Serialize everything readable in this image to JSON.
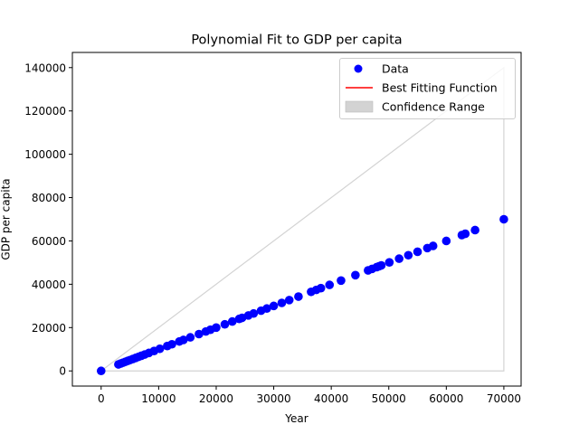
{
  "chart_data": {
    "type": "scatter",
    "title": "Polynomial Fit to GDP per capita",
    "xlabel": "Year",
    "ylabel": "GDP per capita",
    "xlim": [
      -5000,
      73000
    ],
    "ylim": [
      -7000,
      147000
    ],
    "xticks": [
      0,
      10000,
      20000,
      30000,
      40000,
      50000,
      60000,
      70000
    ],
    "xtick_labels": [
      "0",
      "10000",
      "20000",
      "30000",
      "40000",
      "50000",
      "60000",
      "70000"
    ],
    "yticks": [
      0,
      20000,
      40000,
      60000,
      80000,
      100000,
      120000,
      140000
    ],
    "ytick_labels": [
      "0",
      "20000",
      "40000",
      "60000",
      "80000",
      "100000",
      "120000",
      "140000"
    ],
    "grid": false,
    "legend_position": "top-right",
    "legend": [
      {
        "label": "Data",
        "marker": "circle",
        "color": "#0000ff"
      },
      {
        "label": "Best Fitting Function",
        "marker": "line",
        "color": "#ff0000"
      },
      {
        "label": "Confidence Range",
        "marker": "patch",
        "color": "#d3d3d3"
      }
    ],
    "series": [
      {
        "name": "Data",
        "type": "scatter",
        "color": "#0000ff",
        "points": [
          [
            0,
            0
          ],
          [
            3000,
            3000
          ],
          [
            3400,
            3400
          ],
          [
            3800,
            3800
          ],
          [
            4200,
            4200
          ],
          [
            4600,
            4600
          ],
          [
            5000,
            5000
          ],
          [
            5500,
            5500
          ],
          [
            6000,
            6000
          ],
          [
            6500,
            6500
          ],
          [
            7000,
            7000
          ],
          [
            7600,
            7600
          ],
          [
            8300,
            8300
          ],
          [
            9200,
            9200
          ],
          [
            10200,
            10200
          ],
          [
            11500,
            11500
          ],
          [
            12300,
            12300
          ],
          [
            13600,
            13600
          ],
          [
            14300,
            14300
          ],
          [
            15500,
            15500
          ],
          [
            17000,
            17000
          ],
          [
            18200,
            18200
          ],
          [
            19000,
            19000
          ],
          [
            20000,
            20000
          ],
          [
            21500,
            21500
          ],
          [
            22800,
            22800
          ],
          [
            24000,
            24000
          ],
          [
            24500,
            24500
          ],
          [
            25600,
            25600
          ],
          [
            26500,
            26500
          ],
          [
            27800,
            27800
          ],
          [
            28800,
            28800
          ],
          [
            30000,
            30000
          ],
          [
            31400,
            31400
          ],
          [
            32700,
            32700
          ],
          [
            34300,
            34300
          ],
          [
            36500,
            36500
          ],
          [
            37400,
            37400
          ],
          [
            38200,
            38200
          ],
          [
            39700,
            39700
          ],
          [
            41700,
            41700
          ],
          [
            44200,
            44200
          ],
          [
            46400,
            46400
          ],
          [
            47100,
            47100
          ],
          [
            47900,
            47900
          ],
          [
            48300,
            48300
          ],
          [
            48700,
            48700
          ],
          [
            50100,
            50100
          ],
          [
            51800,
            51800
          ],
          [
            53400,
            53400
          ],
          [
            55000,
            55000
          ],
          [
            56700,
            56700
          ],
          [
            57700,
            57700
          ],
          [
            60000,
            60000
          ],
          [
            62700,
            62700
          ],
          [
            63300,
            63300
          ],
          [
            65000,
            65000
          ],
          [
            70000,
            70000
          ]
        ]
      },
      {
        "name": "Best Fitting Function",
        "type": "line",
        "color": "#ff0000",
        "points": [
          [
            0,
            0
          ],
          [
            70000,
            70000
          ]
        ]
      }
    ],
    "confidence_range": {
      "color": "#d3d3d3",
      "upper": [
        [
          0,
          0
        ],
        [
          70000,
          140000
        ]
      ],
      "lower": [
        [
          0,
          0
        ],
        [
          70000,
          0
        ]
      ]
    }
  }
}
